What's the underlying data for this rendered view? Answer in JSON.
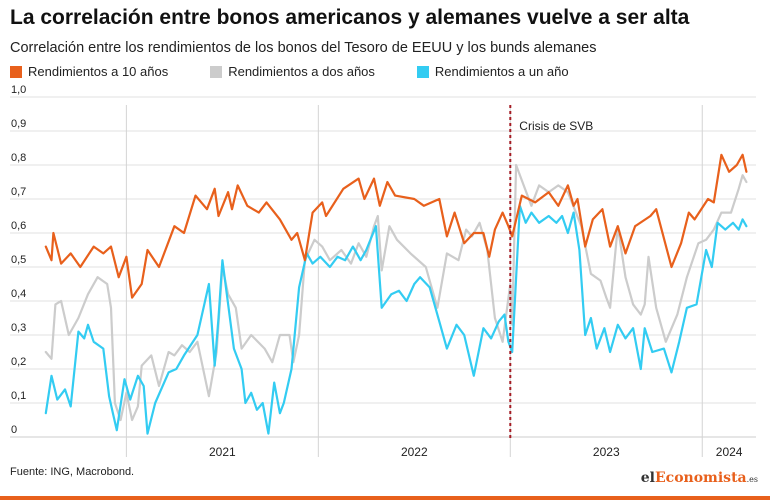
{
  "header": {
    "title": "La correlación entre bonos americanos y alemanes vuelve a ser alta",
    "subtitle": "Correlación entre los rendimientos de los bonos del Tesoro de EEUU y los bunds alemanes"
  },
  "footer": {
    "source": "Fuente: ING, Macrobond.",
    "brand_prefix": "el",
    "brand_accent": "Economista",
    "brand_suffix": ".es"
  },
  "chart_data": {
    "type": "line",
    "title": "La correlación entre bonos americanos y alemanes vuelve a ser alta",
    "subtitle": "Correlación entre los rendimientos de los bonos del Tesoro de EEUU y los bunds alemanes",
    "xlabel": "",
    "ylabel": "",
    "xlim": [
      2020.55,
      2024.28
    ],
    "ylim": [
      0,
      1
    ],
    "y_tick_labels": [
      "0",
      "0,1",
      "0,2",
      "0,3",
      "0,4",
      "0,5",
      "0,6",
      "0,7",
      "0,8",
      "0,9",
      "1,0"
    ],
    "x_tick_labels": [
      {
        "label": "2021",
        "x": 2021.5
      },
      {
        "label": "2022",
        "x": 2022.5
      },
      {
        "label": "2023",
        "x": 2023.5
      },
      {
        "label": "2024",
        "x": 2024.14
      }
    ],
    "year_dividers": [
      2021,
      2022,
      2023,
      2024
    ],
    "grid": true,
    "legend_position": "top-left",
    "annotation": {
      "label": "Crisis de SVB",
      "x": 2023.0,
      "color": "#a51c24"
    },
    "series": [
      {
        "name": "Rendimientos a 10 años",
        "color": "#e8601c",
        "points": [
          [
            2020.58,
            0.56
          ],
          [
            2020.61,
            0.52
          ],
          [
            2020.62,
            0.6
          ],
          [
            2020.66,
            0.51
          ],
          [
            2020.71,
            0.54
          ],
          [
            2020.76,
            0.5
          ],
          [
            2020.83,
            0.56
          ],
          [
            2020.88,
            0.54
          ],
          [
            2020.92,
            0.56
          ],
          [
            2020.96,
            0.47
          ],
          [
            2021.0,
            0.53
          ],
          [
            2021.03,
            0.41
          ],
          [
            2021.08,
            0.45
          ],
          [
            2021.11,
            0.55
          ],
          [
            2021.17,
            0.5
          ],
          [
            2021.25,
            0.62
          ],
          [
            2021.3,
            0.6
          ],
          [
            2021.36,
            0.71
          ],
          [
            2021.42,
            0.67
          ],
          [
            2021.46,
            0.73
          ],
          [
            2021.48,
            0.65
          ],
          [
            2021.53,
            0.72
          ],
          [
            2021.55,
            0.67
          ],
          [
            2021.58,
            0.74
          ],
          [
            2021.63,
            0.68
          ],
          [
            2021.69,
            0.66
          ],
          [
            2021.73,
            0.69
          ],
          [
            2021.8,
            0.64
          ],
          [
            2021.86,
            0.58
          ],
          [
            2021.89,
            0.6
          ],
          [
            2021.93,
            0.52
          ],
          [
            2021.97,
            0.66
          ],
          [
            2022.02,
            0.69
          ],
          [
            2022.04,
            0.65
          ],
          [
            2022.13,
            0.73
          ],
          [
            2022.21,
            0.76
          ],
          [
            2022.24,
            0.7
          ],
          [
            2022.29,
            0.76
          ],
          [
            2022.32,
            0.68
          ],
          [
            2022.36,
            0.75
          ],
          [
            2022.4,
            0.71
          ],
          [
            2022.5,
            0.7
          ],
          [
            2022.55,
            0.68
          ],
          [
            2022.63,
            0.7
          ],
          [
            2022.67,
            0.59
          ],
          [
            2022.71,
            0.66
          ],
          [
            2022.76,
            0.57
          ],
          [
            2022.81,
            0.6
          ],
          [
            2022.86,
            0.6
          ],
          [
            2022.89,
            0.53
          ],
          [
            2022.92,
            0.61
          ],
          [
            2022.96,
            0.66
          ],
          [
            2022.99,
            0.62
          ],
          [
            2023.01,
            0.59
          ],
          [
            2023.06,
            0.71
          ],
          [
            2023.13,
            0.69
          ],
          [
            2023.2,
            0.72
          ],
          [
            2023.25,
            0.68
          ],
          [
            2023.3,
            0.74
          ],
          [
            2023.33,
            0.68
          ],
          [
            2023.35,
            0.7
          ],
          [
            2023.39,
            0.56
          ],
          [
            2023.43,
            0.64
          ],
          [
            2023.48,
            0.67
          ],
          [
            2023.52,
            0.56
          ],
          [
            2023.56,
            0.62
          ],
          [
            2023.6,
            0.54
          ],
          [
            2023.65,
            0.62
          ],
          [
            2023.73,
            0.65
          ],
          [
            2023.76,
            0.67
          ],
          [
            2023.84,
            0.5
          ],
          [
            2023.89,
            0.57
          ],
          [
            2023.93,
            0.66
          ],
          [
            2023.96,
            0.64
          ],
          [
            2024.03,
            0.7
          ],
          [
            2024.06,
            0.69
          ],
          [
            2024.1,
            0.83
          ],
          [
            2024.14,
            0.78
          ],
          [
            2024.18,
            0.8
          ],
          [
            2024.21,
            0.83
          ],
          [
            2024.23,
            0.78
          ]
        ]
      },
      {
        "name": "Rendimientos a dos años",
        "color": "#cccccc",
        "points": [
          [
            2020.58,
            0.25
          ],
          [
            2020.61,
            0.23
          ],
          [
            2020.63,
            0.39
          ],
          [
            2020.66,
            0.4
          ],
          [
            2020.7,
            0.3
          ],
          [
            2020.75,
            0.35
          ],
          [
            2020.8,
            0.42
          ],
          [
            2020.85,
            0.47
          ],
          [
            2020.9,
            0.45
          ],
          [
            2020.92,
            0.38
          ],
          [
            2020.94,
            0.1
          ],
          [
            2020.97,
            0.05
          ],
          [
            2021.0,
            0.13
          ],
          [
            2021.03,
            0.05
          ],
          [
            2021.06,
            0.09
          ],
          [
            2021.08,
            0.21
          ],
          [
            2021.13,
            0.24
          ],
          [
            2021.17,
            0.15
          ],
          [
            2021.22,
            0.25
          ],
          [
            2021.25,
            0.24
          ],
          [
            2021.29,
            0.27
          ],
          [
            2021.33,
            0.25
          ],
          [
            2021.37,
            0.28
          ],
          [
            2021.43,
            0.12
          ],
          [
            2021.47,
            0.25
          ],
          [
            2021.5,
            0.5
          ],
          [
            2021.53,
            0.42
          ],
          [
            2021.57,
            0.38
          ],
          [
            2021.6,
            0.26
          ],
          [
            2021.65,
            0.3
          ],
          [
            2021.72,
            0.26
          ],
          [
            2021.76,
            0.22
          ],
          [
            2021.8,
            0.3
          ],
          [
            2021.85,
            0.3
          ],
          [
            2021.87,
            0.22
          ],
          [
            2021.9,
            0.3
          ],
          [
            2021.93,
            0.52
          ],
          [
            2021.98,
            0.58
          ],
          [
            2022.02,
            0.56
          ],
          [
            2022.06,
            0.52
          ],
          [
            2022.12,
            0.55
          ],
          [
            2022.17,
            0.51
          ],
          [
            2022.21,
            0.57
          ],
          [
            2022.25,
            0.53
          ],
          [
            2022.29,
            0.62
          ],
          [
            2022.31,
            0.65
          ],
          [
            2022.33,
            0.49
          ],
          [
            2022.37,
            0.62
          ],
          [
            2022.41,
            0.58
          ],
          [
            2022.48,
            0.54
          ],
          [
            2022.56,
            0.5
          ],
          [
            2022.62,
            0.38
          ],
          [
            2022.67,
            0.54
          ],
          [
            2022.73,
            0.52
          ],
          [
            2022.77,
            0.61
          ],
          [
            2022.8,
            0.59
          ],
          [
            2022.84,
            0.63
          ],
          [
            2022.88,
            0.55
          ],
          [
            2022.92,
            0.35
          ],
          [
            2022.96,
            0.28
          ],
          [
            2023.0,
            0.45
          ],
          [
            2023.01,
            0.33
          ],
          [
            2023.03,
            0.8
          ],
          [
            2023.07,
            0.74
          ],
          [
            2023.11,
            0.68
          ],
          [
            2023.15,
            0.74
          ],
          [
            2023.2,
            0.72
          ],
          [
            2023.25,
            0.74
          ],
          [
            2023.3,
            0.72
          ],
          [
            2023.37,
            0.62
          ],
          [
            2023.42,
            0.48
          ],
          [
            2023.47,
            0.46
          ],
          [
            2023.5,
            0.41
          ],
          [
            2023.52,
            0.38
          ],
          [
            2023.56,
            0.62
          ],
          [
            2023.6,
            0.47
          ],
          [
            2023.64,
            0.39
          ],
          [
            2023.68,
            0.36
          ],
          [
            2023.7,
            0.39
          ],
          [
            2023.72,
            0.53
          ],
          [
            2023.76,
            0.38
          ],
          [
            2023.81,
            0.28
          ],
          [
            2023.87,
            0.36
          ],
          [
            2023.92,
            0.47
          ],
          [
            2023.98,
            0.57
          ],
          [
            2024.02,
            0.58
          ],
          [
            2024.06,
            0.61
          ],
          [
            2024.1,
            0.66
          ],
          [
            2024.15,
            0.66
          ],
          [
            2024.19,
            0.73
          ],
          [
            2024.21,
            0.77
          ],
          [
            2024.23,
            0.75
          ]
        ]
      },
      {
        "name": "Rendimientos a un año",
        "color": "#33ccf2",
        "points": [
          [
            2020.58,
            0.07
          ],
          [
            2020.61,
            0.18
          ],
          [
            2020.64,
            0.11
          ],
          [
            2020.68,
            0.14
          ],
          [
            2020.71,
            0.09
          ],
          [
            2020.75,
            0.31
          ],
          [
            2020.78,
            0.29
          ],
          [
            2020.8,
            0.33
          ],
          [
            2020.83,
            0.28
          ],
          [
            2020.88,
            0.26
          ],
          [
            2020.91,
            0.12
          ],
          [
            2020.93,
            0.07
          ],
          [
            2020.95,
            0.02
          ],
          [
            2020.99,
            0.17
          ],
          [
            2021.02,
            0.11
          ],
          [
            2021.06,
            0.18
          ],
          [
            2021.09,
            0.15
          ],
          [
            2021.11,
            0.01
          ],
          [
            2021.15,
            0.1
          ],
          [
            2021.22,
            0.19
          ],
          [
            2021.26,
            0.2
          ],
          [
            2021.3,
            0.24
          ],
          [
            2021.37,
            0.3
          ],
          [
            2021.43,
            0.45
          ],
          [
            2021.46,
            0.21
          ],
          [
            2021.48,
            0.35
          ],
          [
            2021.5,
            0.52
          ],
          [
            2021.56,
            0.26
          ],
          [
            2021.6,
            0.2
          ],
          [
            2021.62,
            0.1
          ],
          [
            2021.65,
            0.13
          ],
          [
            2021.68,
            0.08
          ],
          [
            2021.71,
            0.1
          ],
          [
            2021.74,
            0.01
          ],
          [
            2021.77,
            0.16
          ],
          [
            2021.8,
            0.07
          ],
          [
            2021.82,
            0.1
          ],
          [
            2021.86,
            0.2
          ],
          [
            2021.9,
            0.44
          ],
          [
            2021.94,
            0.54
          ],
          [
            2021.97,
            0.51
          ],
          [
            2022.01,
            0.53
          ],
          [
            2022.06,
            0.5
          ],
          [
            2022.1,
            0.53
          ],
          [
            2022.14,
            0.52
          ],
          [
            2022.18,
            0.56
          ],
          [
            2022.22,
            0.52
          ],
          [
            2022.25,
            0.55
          ],
          [
            2022.3,
            0.62
          ],
          [
            2022.33,
            0.38
          ],
          [
            2022.38,
            0.42
          ],
          [
            2022.42,
            0.43
          ],
          [
            2022.46,
            0.4
          ],
          [
            2022.5,
            0.45
          ],
          [
            2022.53,
            0.47
          ],
          [
            2022.58,
            0.44
          ],
          [
            2022.63,
            0.34
          ],
          [
            2022.67,
            0.26
          ],
          [
            2022.72,
            0.33
          ],
          [
            2022.76,
            0.3
          ],
          [
            2022.81,
            0.18
          ],
          [
            2022.86,
            0.32
          ],
          [
            2022.9,
            0.29
          ],
          [
            2022.94,
            0.34
          ],
          [
            2022.97,
            0.36
          ],
          [
            2022.99,
            0.28
          ],
          [
            2023.01,
            0.25
          ],
          [
            2023.05,
            0.68
          ],
          [
            2023.08,
            0.63
          ],
          [
            2023.11,
            0.66
          ],
          [
            2023.15,
            0.63
          ],
          [
            2023.2,
            0.65
          ],
          [
            2023.24,
            0.63
          ],
          [
            2023.27,
            0.65
          ],
          [
            2023.3,
            0.6
          ],
          [
            2023.33,
            0.66
          ],
          [
            2023.36,
            0.55
          ],
          [
            2023.39,
            0.3
          ],
          [
            2023.42,
            0.35
          ],
          [
            2023.45,
            0.26
          ],
          [
            2023.49,
            0.32
          ],
          [
            2023.52,
            0.25
          ],
          [
            2023.56,
            0.33
          ],
          [
            2023.6,
            0.29
          ],
          [
            2023.64,
            0.32
          ],
          [
            2023.68,
            0.2
          ],
          [
            2023.7,
            0.32
          ],
          [
            2023.74,
            0.25
          ],
          [
            2023.8,
            0.26
          ],
          [
            2023.84,
            0.19
          ],
          [
            2023.88,
            0.28
          ],
          [
            2023.92,
            0.38
          ],
          [
            2023.97,
            0.39
          ],
          [
            2024.02,
            0.55
          ],
          [
            2024.05,
            0.5
          ],
          [
            2024.08,
            0.63
          ],
          [
            2024.12,
            0.61
          ],
          [
            2024.16,
            0.63
          ],
          [
            2024.19,
            0.61
          ],
          [
            2024.21,
            0.64
          ],
          [
            2024.23,
            0.62
          ]
        ]
      }
    ]
  }
}
